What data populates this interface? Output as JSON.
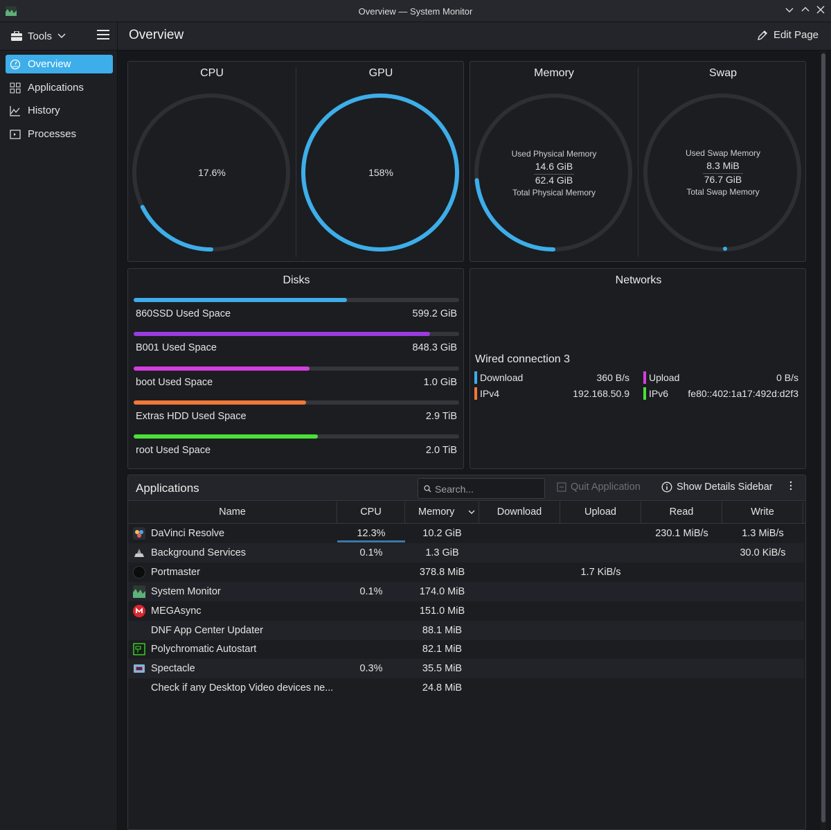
{
  "window": {
    "title": "Overview — System Monitor"
  },
  "header": {
    "tools_label": "Tools",
    "page_title": "Overview",
    "edit_label": "Edit Page"
  },
  "sidebar": {
    "items": [
      {
        "label": "Overview",
        "icon": "overview-icon",
        "active": true
      },
      {
        "label": "Applications",
        "icon": "grid-icon"
      },
      {
        "label": "History",
        "icon": "chart-icon"
      },
      {
        "label": "Processes",
        "icon": "terminal-icon"
      }
    ]
  },
  "gauges": {
    "cpu": {
      "title": "CPU",
      "value": "17.6%",
      "fraction": 0.176
    },
    "gpu": {
      "title": "GPU",
      "value": "158%",
      "fraction": 1.0
    },
    "memory": {
      "title": "Memory",
      "used_label": "Used Physical Memory",
      "used": "14.6 GiB",
      "total": "62.4 GiB",
      "total_label": "Total Physical Memory",
      "fraction": 0.234
    },
    "swap": {
      "title": "Swap",
      "used_label": "Used Swap Memory",
      "used": "8.3 MiB",
      "total": "76.7 GiB",
      "total_label": "Total Swap Memory",
      "fraction": 0.0001
    }
  },
  "colors": {
    "accent": "#3daee9",
    "track": "#2d2f34"
  },
  "disks": {
    "title": "Disks",
    "items": [
      {
        "name": "860SSD Used Space",
        "value": "599.2 GiB",
        "fraction": 0.655,
        "color": "#3daee9"
      },
      {
        "name": "B001 Used Space",
        "value": "848.3 GiB",
        "fraction": 0.91,
        "color": "#9a3ce0"
      },
      {
        "name": "boot Used Space",
        "value": "1.0 GiB",
        "fraction": 0.54,
        "color": "#d43ee0"
      },
      {
        "name": "Extras HDD Used Space",
        "value": "2.9 TiB",
        "fraction": 0.53,
        "color": "#f07838"
      },
      {
        "name": "root Used Space",
        "value": "2.0 TiB",
        "fraction": 0.565,
        "color": "#4be038"
      }
    ]
  },
  "networks": {
    "title": "Networks",
    "connection": "Wired connection 3",
    "download_label": "Download",
    "download": "360 B/s",
    "upload_label": "Upload",
    "upload": "0 B/s",
    "ipv4_label": "IPv4",
    "ipv4": "192.168.50.9",
    "ipv6_label": "IPv6",
    "ipv6": "fe80::402:1a17:492d:d2f3"
  },
  "apps": {
    "title": "Applications",
    "search_placeholder": "Search...",
    "quit_label": "Quit Application",
    "details_label": "Show Details Sidebar",
    "columns": [
      "Name",
      "CPU",
      "Memory",
      "Download",
      "Upload",
      "Read",
      "Write"
    ],
    "rows": [
      {
        "name": "DaVinci Resolve",
        "icon": "davinci-icon",
        "cpu": "12.3%",
        "memory": "10.2 GiB",
        "download": "",
        "upload": "",
        "read": "230.1 MiB/s",
        "write": "1.3 MiB/s"
      },
      {
        "name": "Background Services",
        "icon": "services-icon",
        "cpu": "0.1%",
        "memory": "1.3 GiB",
        "download": "",
        "upload": "",
        "read": "",
        "write": "30.0 KiB/s"
      },
      {
        "name": "Portmaster",
        "icon": "portmaster-icon",
        "cpu": "",
        "memory": "378.8 MiB",
        "download": "",
        "upload": "1.7 KiB/s",
        "read": "",
        "write": ""
      },
      {
        "name": "System Monitor",
        "icon": "system-monitor-icon",
        "cpu": "0.1%",
        "memory": "174.0 MiB",
        "download": "",
        "upload": "",
        "read": "",
        "write": ""
      },
      {
        "name": "MEGAsync",
        "icon": "mega-icon",
        "cpu": "",
        "memory": "151.0 MiB",
        "download": "",
        "upload": "",
        "read": "",
        "write": ""
      },
      {
        "name": "DNF App Center Updater",
        "icon": "",
        "cpu": "",
        "memory": "88.1 MiB",
        "download": "",
        "upload": "",
        "read": "",
        "write": ""
      },
      {
        "name": "Polychromatic Autostart",
        "icon": "polychromatic-icon",
        "cpu": "",
        "memory": "82.1 MiB",
        "download": "",
        "upload": "",
        "read": "",
        "write": ""
      },
      {
        "name": "Spectacle",
        "icon": "spectacle-icon",
        "cpu": "0.3%",
        "memory": "35.5 MiB",
        "download": "",
        "upload": "",
        "read": "",
        "write": ""
      },
      {
        "name": "Check if any Desktop Video devices ne...",
        "icon": "",
        "cpu": "",
        "memory": "24.8 MiB",
        "download": "",
        "upload": "",
        "read": "",
        "write": ""
      }
    ]
  }
}
